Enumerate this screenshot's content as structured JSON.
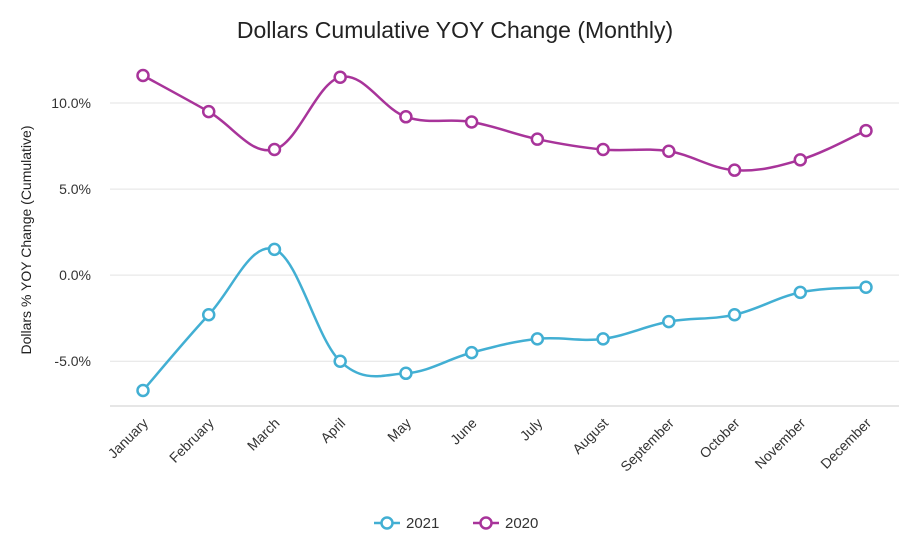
{
  "chart_data": {
    "type": "line",
    "title": "Dollars Cumulative YOY Change (Monthly)",
    "xlabel": "",
    "ylabel": "Dollars % YOY Change (Cumulative)",
    "categories": [
      "January",
      "February",
      "March",
      "April",
      "May",
      "June",
      "July",
      "August",
      "September",
      "October",
      "November",
      "December"
    ],
    "yticks": [
      "10.0%",
      "5.0%",
      "0.0%",
      "-5.0%"
    ],
    "ytick_values": [
      10,
      5,
      0,
      -5
    ],
    "ylim": [
      -7.6,
      12.5
    ],
    "grid": true,
    "legend_position": "bottom-center",
    "series": [
      {
        "name": "2021",
        "color": "#42afd3",
        "values": [
          -6.7,
          -2.3,
          1.5,
          -5.0,
          -5.7,
          -4.5,
          -3.7,
          -3.7,
          -2.7,
          -2.3,
          -1.0,
          -0.7
        ]
      },
      {
        "name": "2020",
        "color": "#a8349a",
        "values": [
          11.6,
          9.5,
          7.3,
          11.5,
          9.2,
          8.9,
          7.9,
          7.3,
          7.2,
          6.1,
          6.7,
          8.4
        ]
      }
    ]
  }
}
